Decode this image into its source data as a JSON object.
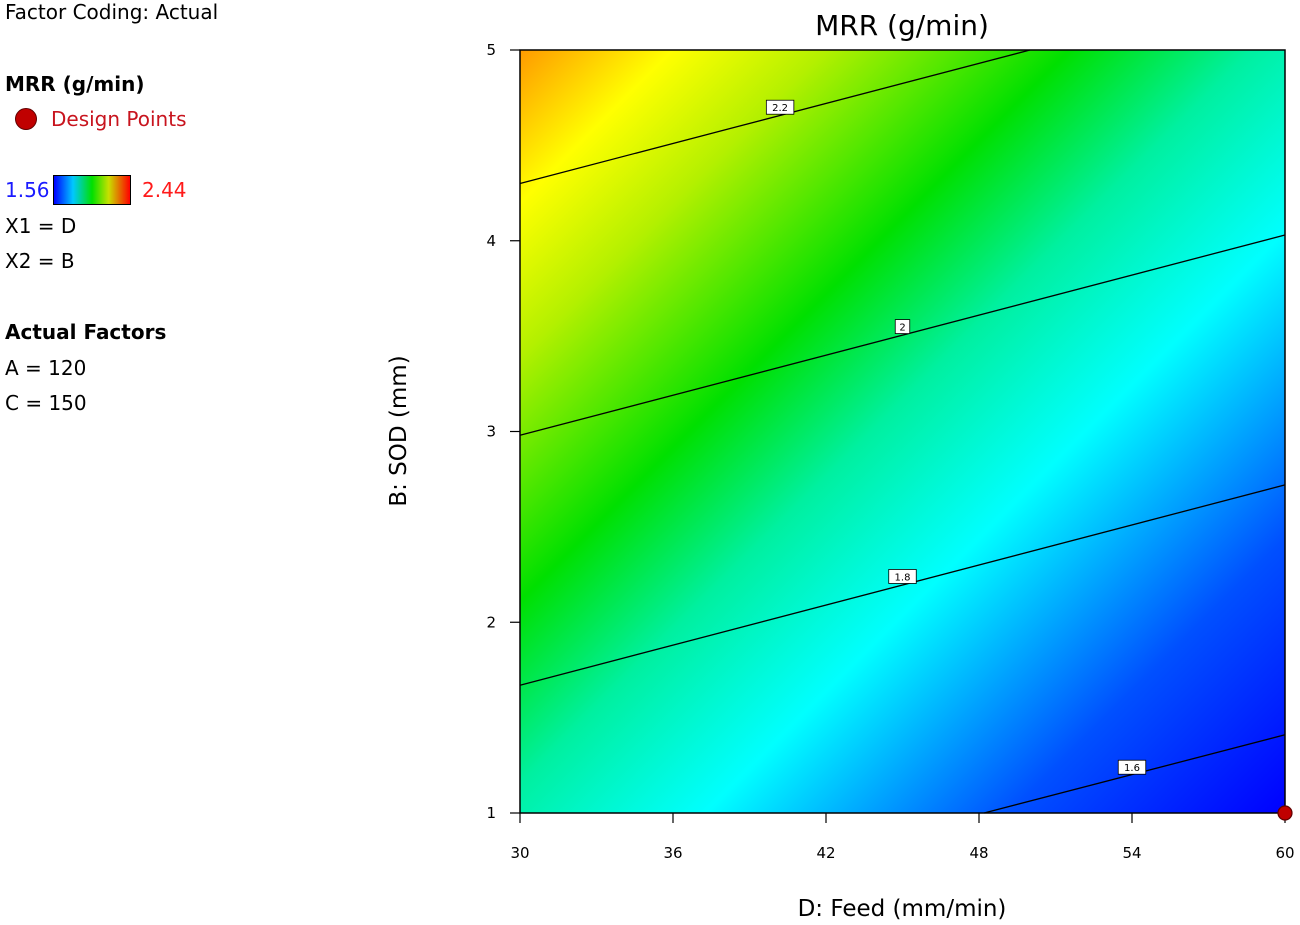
{
  "legend": {
    "factor_coding": "Factor Coding: Actual",
    "response": "MRR (g/min)",
    "design_points_label": "Design Points",
    "range_min": "1.56",
    "range_max": "2.44",
    "x1": "X1 = D",
    "x2": "X2 = B",
    "actual_factors_heading": "Actual Factors",
    "factor_a": "A = 120",
    "factor_c": "C = 150"
  },
  "colors": {
    "low": "#0000ff",
    "high": "#ff0000",
    "design_point": "#c00000",
    "range_min_text": "#1a1aff",
    "range_max_text": "#ff1a1a"
  },
  "chart_data": {
    "type": "contour",
    "title": "MRR (g/min)",
    "xlabel": "D: Feed (mm/min)",
    "ylabel": "B: SOD (mm)",
    "xlim": [
      30,
      60
    ],
    "ylim": [
      1,
      5
    ],
    "x_ticks": [
      "30",
      "36",
      "42",
      "48",
      "54",
      "60"
    ],
    "y_ticks": [
      "1",
      "2",
      "3",
      "4",
      "5"
    ],
    "color_range": [
      1.56,
      2.44
    ],
    "contours": [
      {
        "level": 2.2,
        "label": "2.2",
        "points": [
          [
            30,
            4.3
          ],
          [
            50,
            5.0
          ]
        ],
        "label_at": [
          40.2,
          4.7
        ]
      },
      {
        "level": 2.0,
        "label": "2",
        "points": [
          [
            30,
            2.98
          ],
          [
            60,
            4.03
          ]
        ],
        "label_at": [
          45.0,
          3.55
        ]
      },
      {
        "level": 1.8,
        "label": "1.8",
        "points": [
          [
            30,
            1.67
          ],
          [
            60,
            2.72
          ]
        ],
        "label_at": [
          45.0,
          2.24
        ]
      },
      {
        "level": 1.6,
        "label": "1.6",
        "points": [
          [
            48.2,
            1.0
          ],
          [
            60,
            1.41
          ]
        ],
        "label_at": [
          54.0,
          1.24
        ]
      }
    ],
    "design_points": [
      [
        60,
        1
      ]
    ]
  }
}
